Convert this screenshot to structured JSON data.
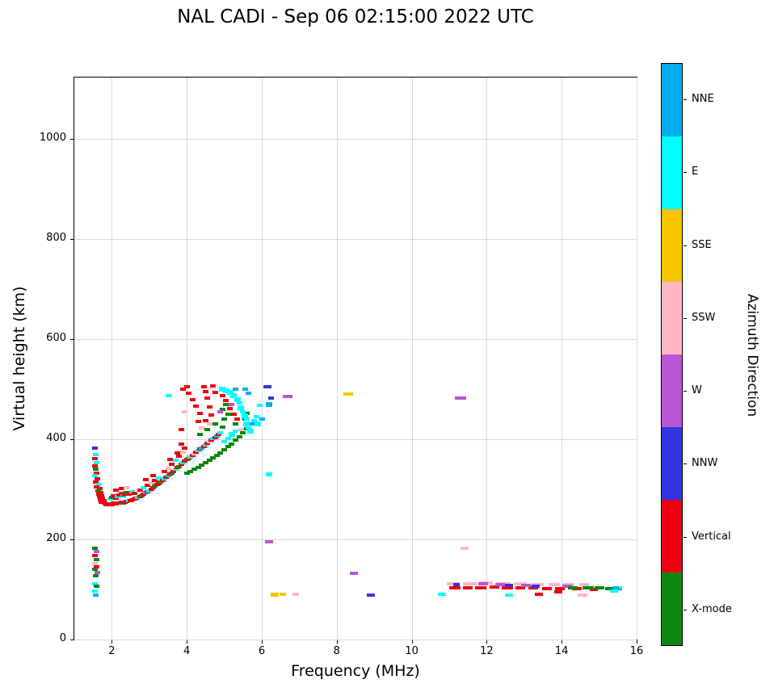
{
  "chart_data": {
    "type": "scatter",
    "title": "NAL CADI - Sep 06 02:15:00 2022 UTC",
    "xlabel": "Frequency (MHz)",
    "ylabel": "Virtual height (km)",
    "xlim": [
      1,
      16
    ],
    "ylim": [
      0,
      1123
    ],
    "xticks": [
      2,
      4,
      6,
      8,
      10,
      12,
      14,
      16
    ],
    "yticks": [
      0,
      200,
      400,
      600,
      800,
      1000
    ],
    "grid": true,
    "grid_color": "#d9d9d9",
    "point_size": {
      "w": 7,
      "h": 4
    },
    "legend": {
      "title": "Azimuth Direction",
      "position": "right-colorbar",
      "entries": [
        {
          "key": "NNE",
          "label": "NNE",
          "color": "#00AEEF"
        },
        {
          "key": "E",
          "label": "E",
          "color": "#00FFFF"
        },
        {
          "key": "SSE",
          "label": "SSE",
          "color": "#F6C500"
        },
        {
          "key": "SSW",
          "label": "SSW",
          "color": "#FFB7C5"
        },
        {
          "key": "W",
          "label": "W",
          "color": "#BA55D3"
        },
        {
          "key": "NNW",
          "label": "NNW",
          "color": "#3333E0"
        },
        {
          "key": "V",
          "label": "Vertical",
          "color": "#EE0011"
        },
        {
          "key": "X",
          "label": "X-mode",
          "color": "#0E870E"
        }
      ]
    },
    "points": [
      [
        1.55,
        383,
        "NNW"
      ],
      [
        1.57,
        370,
        "E"
      ],
      [
        1.55,
        362,
        "V"
      ],
      [
        1.6,
        354,
        "E"
      ],
      [
        1.55,
        347,
        "V"
      ],
      [
        1.58,
        340,
        "X"
      ],
      [
        1.6,
        333,
        "V"
      ],
      [
        1.55,
        327,
        "E"
      ],
      [
        1.62,
        321,
        "V"
      ],
      [
        1.58,
        315,
        "V"
      ],
      [
        1.65,
        310,
        "E"
      ],
      [
        1.6,
        305,
        "V"
      ],
      [
        1.67,
        301,
        "V"
      ],
      [
        1.63,
        297,
        "X"
      ],
      [
        1.7,
        294,
        "V"
      ],
      [
        1.65,
        291,
        "V"
      ],
      [
        1.72,
        288,
        "V"
      ],
      [
        1.68,
        285,
        "V"
      ],
      [
        1.75,
        282,
        "V"
      ],
      [
        1.7,
        279,
        "V"
      ],
      [
        1.78,
        277,
        "V"
      ],
      [
        1.73,
        274,
        "V"
      ],
      [
        1.8,
        272,
        "V"
      ],
      [
        1.85,
        270,
        "V"
      ],
      [
        1.55,
        183,
        "X"
      ],
      [
        1.6,
        176,
        "W"
      ],
      [
        1.55,
        168,
        "V"
      ],
      [
        1.6,
        160,
        "X"
      ],
      [
        1.55,
        152,
        "SSW"
      ],
      [
        1.6,
        146,
        "V"
      ],
      [
        1.55,
        140,
        "X"
      ],
      [
        1.62,
        134,
        "W"
      ],
      [
        1.57,
        128,
        "X"
      ],
      [
        1.55,
        112,
        "E"
      ],
      [
        1.6,
        106,
        "X"
      ],
      [
        1.55,
        97,
        "E"
      ],
      [
        1.58,
        89,
        "NNE"
      ],
      [
        1.9,
        269,
        "V"
      ],
      [
        1.95,
        271,
        "V"
      ],
      [
        2.0,
        270,
        "V"
      ],
      [
        2.05,
        272,
        "V"
      ],
      [
        2.1,
        271,
        "V"
      ],
      [
        2.15,
        273,
        "V"
      ],
      [
        2.2,
        272,
        "V"
      ],
      [
        2.25,
        274,
        "V"
      ],
      [
        2.3,
        273,
        "X"
      ],
      [
        2.35,
        275,
        "V"
      ],
      [
        2.4,
        276,
        "V"
      ],
      [
        2.45,
        277,
        "E"
      ],
      [
        2.5,
        278,
        "V"
      ],
      [
        2.55,
        279,
        "V"
      ],
      [
        2.6,
        280,
        "V"
      ],
      [
        1.95,
        280,
        "E"
      ],
      [
        2.0,
        284,
        "X"
      ],
      [
        2.05,
        287,
        "V"
      ],
      [
        2.1,
        283,
        "V"
      ],
      [
        2.15,
        286,
        "E"
      ],
      [
        2.2,
        289,
        "V"
      ],
      [
        2.25,
        292,
        "V"
      ],
      [
        2.3,
        288,
        "NNE"
      ],
      [
        2.35,
        291,
        "V"
      ],
      [
        2.4,
        294,
        "X"
      ],
      [
        2.45,
        290,
        "V"
      ],
      [
        2.5,
        293,
        "V"
      ],
      [
        2.55,
        296,
        "E"
      ],
      [
        2.6,
        292,
        "V"
      ],
      [
        2.1,
        298,
        "V"
      ],
      [
        2.25,
        301,
        "V"
      ],
      [
        2.4,
        304,
        "SSW"
      ],
      [
        2.65,
        282,
        "V"
      ],
      [
        2.7,
        284,
        "E"
      ],
      [
        2.75,
        286,
        "V"
      ],
      [
        2.8,
        288,
        "X"
      ],
      [
        2.85,
        290,
        "V"
      ],
      [
        2.9,
        293,
        "NNE"
      ],
      [
        2.95,
        295,
        "V"
      ],
      [
        3.0,
        297,
        "E"
      ],
      [
        3.05,
        300,
        "V"
      ],
      [
        3.1,
        303,
        "V"
      ],
      [
        3.15,
        306,
        "X"
      ],
      [
        3.2,
        309,
        "V"
      ],
      [
        3.25,
        312,
        "V"
      ],
      [
        3.3,
        315,
        "X"
      ],
      [
        2.75,
        298,
        "V"
      ],
      [
        2.85,
        303,
        "E"
      ],
      [
        2.95,
        308,
        "V"
      ],
      [
        3.05,
        313,
        "SSW"
      ],
      [
        3.15,
        318,
        "V"
      ],
      [
        3.25,
        323,
        "E"
      ],
      [
        2.9,
        320,
        "V"
      ],
      [
        3.1,
        328,
        "V"
      ],
      [
        3.35,
        318,
        "V"
      ],
      [
        3.4,
        321,
        "E"
      ],
      [
        3.45,
        324,
        "V"
      ],
      [
        3.5,
        327,
        "NNE"
      ],
      [
        3.55,
        330,
        "V"
      ],
      [
        3.6,
        333,
        "X"
      ],
      [
        3.65,
        336,
        "V"
      ],
      [
        3.7,
        340,
        "E"
      ],
      [
        3.75,
        343,
        "V"
      ],
      [
        3.8,
        346,
        "X"
      ],
      [
        3.85,
        350,
        "V"
      ],
      [
        3.9,
        354,
        "E"
      ],
      [
        3.95,
        357,
        "V"
      ],
      [
        4.0,
        360,
        "X"
      ],
      [
        3.4,
        335,
        "V"
      ],
      [
        3.5,
        342,
        "SSW"
      ],
      [
        3.6,
        350,
        "V"
      ],
      [
        3.7,
        358,
        "E"
      ],
      [
        3.8,
        366,
        "V"
      ],
      [
        3.9,
        374,
        "SSW"
      ],
      [
        3.95,
        382,
        "V"
      ],
      [
        3.55,
        360,
        "V"
      ],
      [
        3.75,
        372,
        "V"
      ],
      [
        3.85,
        390,
        "V"
      ],
      [
        3.5,
        487,
        "E"
      ],
      [
        3.9,
        500,
        "V"
      ],
      [
        3.95,
        455,
        "SSW"
      ],
      [
        3.85,
        420,
        "V"
      ],
      [
        4.05,
        362,
        "V"
      ],
      [
        4.1,
        365,
        "E"
      ],
      [
        4.15,
        368,
        "V"
      ],
      [
        4.2,
        371,
        "SSW"
      ],
      [
        4.25,
        374,
        "V"
      ],
      [
        4.3,
        377,
        "E"
      ],
      [
        4.35,
        380,
        "V"
      ],
      [
        4.4,
        383,
        "NNE"
      ],
      [
        4.45,
        386,
        "V"
      ],
      [
        4.5,
        389,
        "E"
      ],
      [
        4.55,
        392,
        "V"
      ],
      [
        4.6,
        395,
        "SSW"
      ],
      [
        4.65,
        398,
        "V"
      ],
      [
        4.7,
        401,
        "E"
      ],
      [
        4.75,
        404,
        "V"
      ],
      [
        4.8,
        407,
        "NNE"
      ],
      [
        4.85,
        410,
        "V"
      ],
      [
        4.9,
        413,
        "E"
      ],
      [
        4.0,
        332,
        "X"
      ],
      [
        4.1,
        336,
        "X"
      ],
      [
        4.2,
        340,
        "X"
      ],
      [
        4.3,
        344,
        "X"
      ],
      [
        4.4,
        348,
        "X"
      ],
      [
        4.5,
        353,
        "X"
      ],
      [
        4.6,
        358,
        "X"
      ],
      [
        4.7,
        363,
        "X"
      ],
      [
        4.8,
        368,
        "X"
      ],
      [
        4.9,
        373,
        "X"
      ],
      [
        5.0,
        379,
        "X"
      ],
      [
        5.1,
        385,
        "X"
      ],
      [
        5.2,
        391,
        "X"
      ],
      [
        5.3,
        398,
        "X"
      ],
      [
        5.4,
        405,
        "X"
      ],
      [
        5.5,
        413,
        "X"
      ],
      [
        5.6,
        421,
        "X"
      ],
      [
        5.0,
        440,
        "X"
      ],
      [
        5.1,
        450,
        "X"
      ],
      [
        4.95,
        460,
        "X"
      ],
      [
        5.05,
        470,
        "X"
      ],
      [
        5.3,
        430,
        "X"
      ],
      [
        5.55,
        440,
        "X"
      ],
      [
        5.6,
        452,
        "X"
      ],
      [
        4.75,
        430,
        "X"
      ],
      [
        4.55,
        420,
        "X"
      ],
      [
        4.35,
        410,
        "X"
      ],
      [
        4.95,
        425,
        "X"
      ],
      [
        4.0,
        505,
        "V"
      ],
      [
        4.05,
        492,
        "V"
      ],
      [
        4.15,
        480,
        "V"
      ],
      [
        4.25,
        466,
        "V"
      ],
      [
        4.35,
        452,
        "V"
      ],
      [
        4.45,
        505,
        "V"
      ],
      [
        4.5,
        496,
        "V"
      ],
      [
        4.55,
        482,
        "V"
      ],
      [
        4.6,
        464,
        "V"
      ],
      [
        4.65,
        448,
        "V"
      ],
      [
        4.7,
        506,
        "V"
      ],
      [
        4.75,
        493,
        "V"
      ],
      [
        4.3,
        436,
        "V"
      ],
      [
        4.5,
        438,
        "V"
      ],
      [
        4.6,
        430,
        "SSW"
      ],
      [
        4.4,
        422,
        "SSW"
      ],
      [
        4.95,
        500,
        "E",
        8,
        6
      ],
      [
        5.05,
        497,
        "E",
        8,
        6
      ],
      [
        5.15,
        493,
        "E",
        8,
        6
      ],
      [
        5.25,
        488,
        "E",
        8,
        6
      ],
      [
        5.3,
        500,
        "NNE"
      ],
      [
        5.35,
        480,
        "E",
        8,
        6
      ],
      [
        5.4,
        472,
        "E"
      ],
      [
        5.45,
        463,
        "E",
        8,
        6
      ],
      [
        5.5,
        455,
        "E"
      ],
      [
        5.55,
        447,
        "E",
        8,
        6
      ],
      [
        5.6,
        440,
        "E"
      ],
      [
        5.55,
        500,
        "NNE"
      ],
      [
        5.65,
        492,
        "NNE"
      ],
      [
        5.6,
        430,
        "E",
        8,
        6
      ],
      [
        5.65,
        423,
        "E"
      ],
      [
        5.7,
        416,
        "E",
        8,
        6
      ],
      [
        5.75,
        430,
        "NNE"
      ],
      [
        5.8,
        438,
        "E"
      ],
      [
        5.85,
        445,
        "E"
      ],
      [
        5.9,
        430,
        "E",
        8,
        6
      ],
      [
        5.95,
        468,
        "E"
      ],
      [
        6.0,
        440,
        "NNE"
      ],
      [
        5.2,
        410,
        "E",
        8,
        6
      ],
      [
        5.1,
        402,
        "E"
      ],
      [
        5.0,
        396,
        "E"
      ],
      [
        5.3,
        416,
        "E"
      ],
      [
        5.45,
        420,
        "SSW"
      ],
      [
        5.35,
        440,
        "V"
      ],
      [
        5.25,
        450,
        "V"
      ],
      [
        5.15,
        462,
        "V"
      ],
      [
        5.05,
        478,
        "V"
      ],
      [
        4.95,
        488,
        "V"
      ],
      [
        4.9,
        455,
        "W"
      ],
      [
        5.2,
        470,
        "W"
      ],
      [
        6.15,
        505,
        "NNW",
        10,
        4
      ],
      [
        6.2,
        470,
        "NNE",
        8,
        6
      ],
      [
        6.25,
        482,
        "NNW"
      ],
      [
        6.7,
        485,
        "W",
        12,
        4
      ],
      [
        6.2,
        330,
        "E",
        8,
        5
      ],
      [
        6.2,
        195,
        "W",
        10,
        4
      ],
      [
        6.35,
        90,
        "SSE",
        10,
        5
      ],
      [
        6.55,
        90,
        "SSE",
        8,
        4
      ],
      [
        6.9,
        91,
        "SSW",
        8,
        4
      ],
      [
        8.3,
        490,
        "SSE",
        12,
        4
      ],
      [
        8.45,
        133,
        "W",
        10,
        4
      ],
      [
        8.9,
        88,
        "NNW",
        10,
        4
      ],
      [
        10.8,
        90,
        "E",
        10,
        4
      ],
      [
        11.3,
        483,
        "W",
        14,
        4
      ],
      [
        11.4,
        183,
        "SSW",
        10,
        4
      ],
      [
        11.1,
        112,
        "SSW",
        16,
        4
      ],
      [
        11.55,
        112,
        "SSW",
        18,
        4
      ],
      [
        12.0,
        113,
        "SSW",
        16,
        4
      ],
      [
        12.45,
        112,
        "SSW",
        18,
        4
      ],
      [
        12.9,
        111,
        "SSW",
        16,
        4
      ],
      [
        13.35,
        110,
        "SSW",
        16,
        4
      ],
      [
        13.8,
        110,
        "SSW",
        14,
        4
      ],
      [
        14.2,
        109,
        "SSW",
        14,
        4
      ],
      [
        14.55,
        88,
        "SSW",
        12,
        4
      ],
      [
        14.6,
        109,
        "SSW",
        12,
        4
      ],
      [
        11.15,
        104,
        "V",
        14,
        4
      ],
      [
        11.5,
        103,
        "V",
        12,
        4
      ],
      [
        11.85,
        104,
        "V",
        14,
        4
      ],
      [
        12.2,
        105,
        "V",
        12,
        4
      ],
      [
        12.55,
        104,
        "V",
        14,
        4
      ],
      [
        12.9,
        103,
        "V",
        12,
        4
      ],
      [
        13.25,
        103,
        "V",
        12,
        4
      ],
      [
        13.4,
        90,
        "V",
        10,
        4
      ],
      [
        13.6,
        102,
        "V",
        12,
        4
      ],
      [
        13.9,
        95,
        "V",
        10,
        4
      ],
      [
        13.95,
        102,
        "V",
        12,
        4
      ],
      [
        14.4,
        101,
        "V",
        12,
        4
      ],
      [
        14.85,
        100,
        "V",
        10,
        4
      ],
      [
        11.9,
        112,
        "W",
        12,
        4
      ],
      [
        12.35,
        110,
        "W",
        12,
        4
      ],
      [
        13.05,
        108,
        "W",
        12,
        4
      ],
      [
        14.15,
        106,
        "W",
        12,
        4
      ],
      [
        12.6,
        108,
        "NNW",
        10,
        4
      ],
      [
        13.3,
        106,
        "NNW",
        10,
        4
      ],
      [
        11.2,
        110,
        "NNW",
        8,
        4
      ],
      [
        14.3,
        103,
        "X",
        12,
        4
      ],
      [
        14.7,
        104,
        "X",
        14,
        4
      ],
      [
        15.0,
        103,
        "X",
        12,
        4
      ],
      [
        15.3,
        102,
        "X",
        14,
        4
      ],
      [
        15.5,
        101,
        "X",
        10,
        4
      ],
      [
        12.6,
        88,
        "E",
        10,
        4
      ],
      [
        15.4,
        97,
        "E",
        10,
        4
      ],
      [
        15.5,
        104,
        "E",
        10,
        4
      ],
      [
        15.45,
        103,
        "NNE",
        8,
        4
      ]
    ]
  }
}
